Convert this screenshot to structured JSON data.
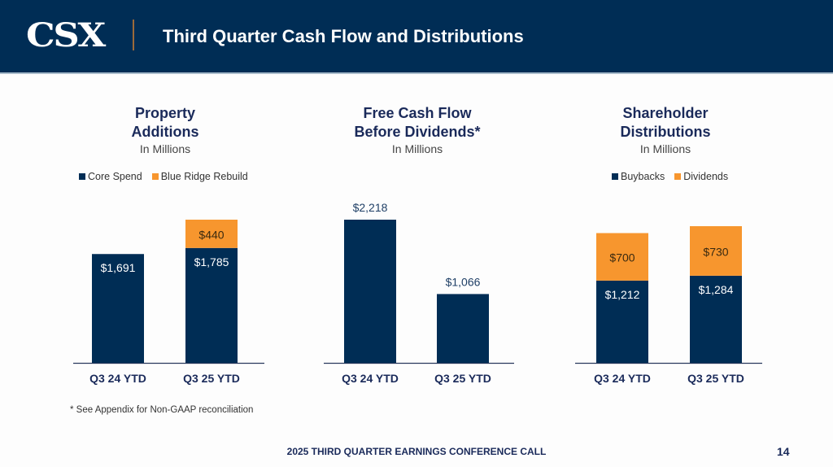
{
  "header": {
    "logo": "CSX",
    "title": "Third Quarter Cash Flow and Distributions"
  },
  "colors": {
    "navy": "#002d55",
    "orange": "#f7962e",
    "header_bg": "#002d55"
  },
  "chart_data": [
    {
      "type": "bar",
      "stacked": true,
      "title": "Property Additions",
      "title_lines": [
        "Property",
        "Additions"
      ],
      "subtitle": "In Millions",
      "categories": [
        "Q3 24 YTD",
        "Q3 25 YTD"
      ],
      "series": [
        {
          "name": "Core Spend",
          "color": "#002d55",
          "values": [
            1691,
            1785
          ],
          "labels": [
            "$1,691",
            "$1,785"
          ]
        },
        {
          "name": "Blue Ridge Rebuild",
          "color": "#f7962e",
          "values": [
            0,
            440
          ],
          "labels": [
            "",
            "$440"
          ]
        }
      ],
      "legend": "top",
      "ylim": [
        0,
        2225
      ]
    },
    {
      "type": "bar",
      "stacked": false,
      "title": "Free Cash Flow Before Dividends*",
      "title_lines": [
        "Free Cash Flow",
        "Before Dividends*"
      ],
      "subtitle": "In Millions",
      "categories": [
        "Q3 24 YTD",
        "Q3 25 YTD"
      ],
      "series": [
        {
          "name": "Free Cash Flow Before Dividends",
          "color": "#002d55",
          "values": [
            2218,
            1066
          ],
          "labels": [
            "$2,218",
            "$1,066"
          ]
        }
      ],
      "legend": "none",
      "ylim": [
        0,
        2218
      ]
    },
    {
      "type": "bar",
      "stacked": true,
      "title": "Shareholder Distributions",
      "title_lines": [
        "Shareholder",
        "Distributions"
      ],
      "subtitle": "In Millions",
      "categories": [
        "Q3 24 YTD",
        "Q3 25 YTD"
      ],
      "series": [
        {
          "name": "Buybacks",
          "color": "#002d55",
          "values": [
            1212,
            1284
          ],
          "labels": [
            "$1,212",
            "$1,284"
          ]
        },
        {
          "name": "Dividends",
          "color": "#f7962e",
          "values": [
            700,
            730
          ],
          "labels": [
            "$700",
            "$730"
          ]
        }
      ],
      "legend": "top",
      "ylim": [
        0,
        2014
      ]
    }
  ],
  "footnote": "* See Appendix for Non-GAAP reconciliation",
  "footer": {
    "text": "2025 THIRD QUARTER EARNINGS CONFERENCE CALL",
    "page_number": "14"
  }
}
